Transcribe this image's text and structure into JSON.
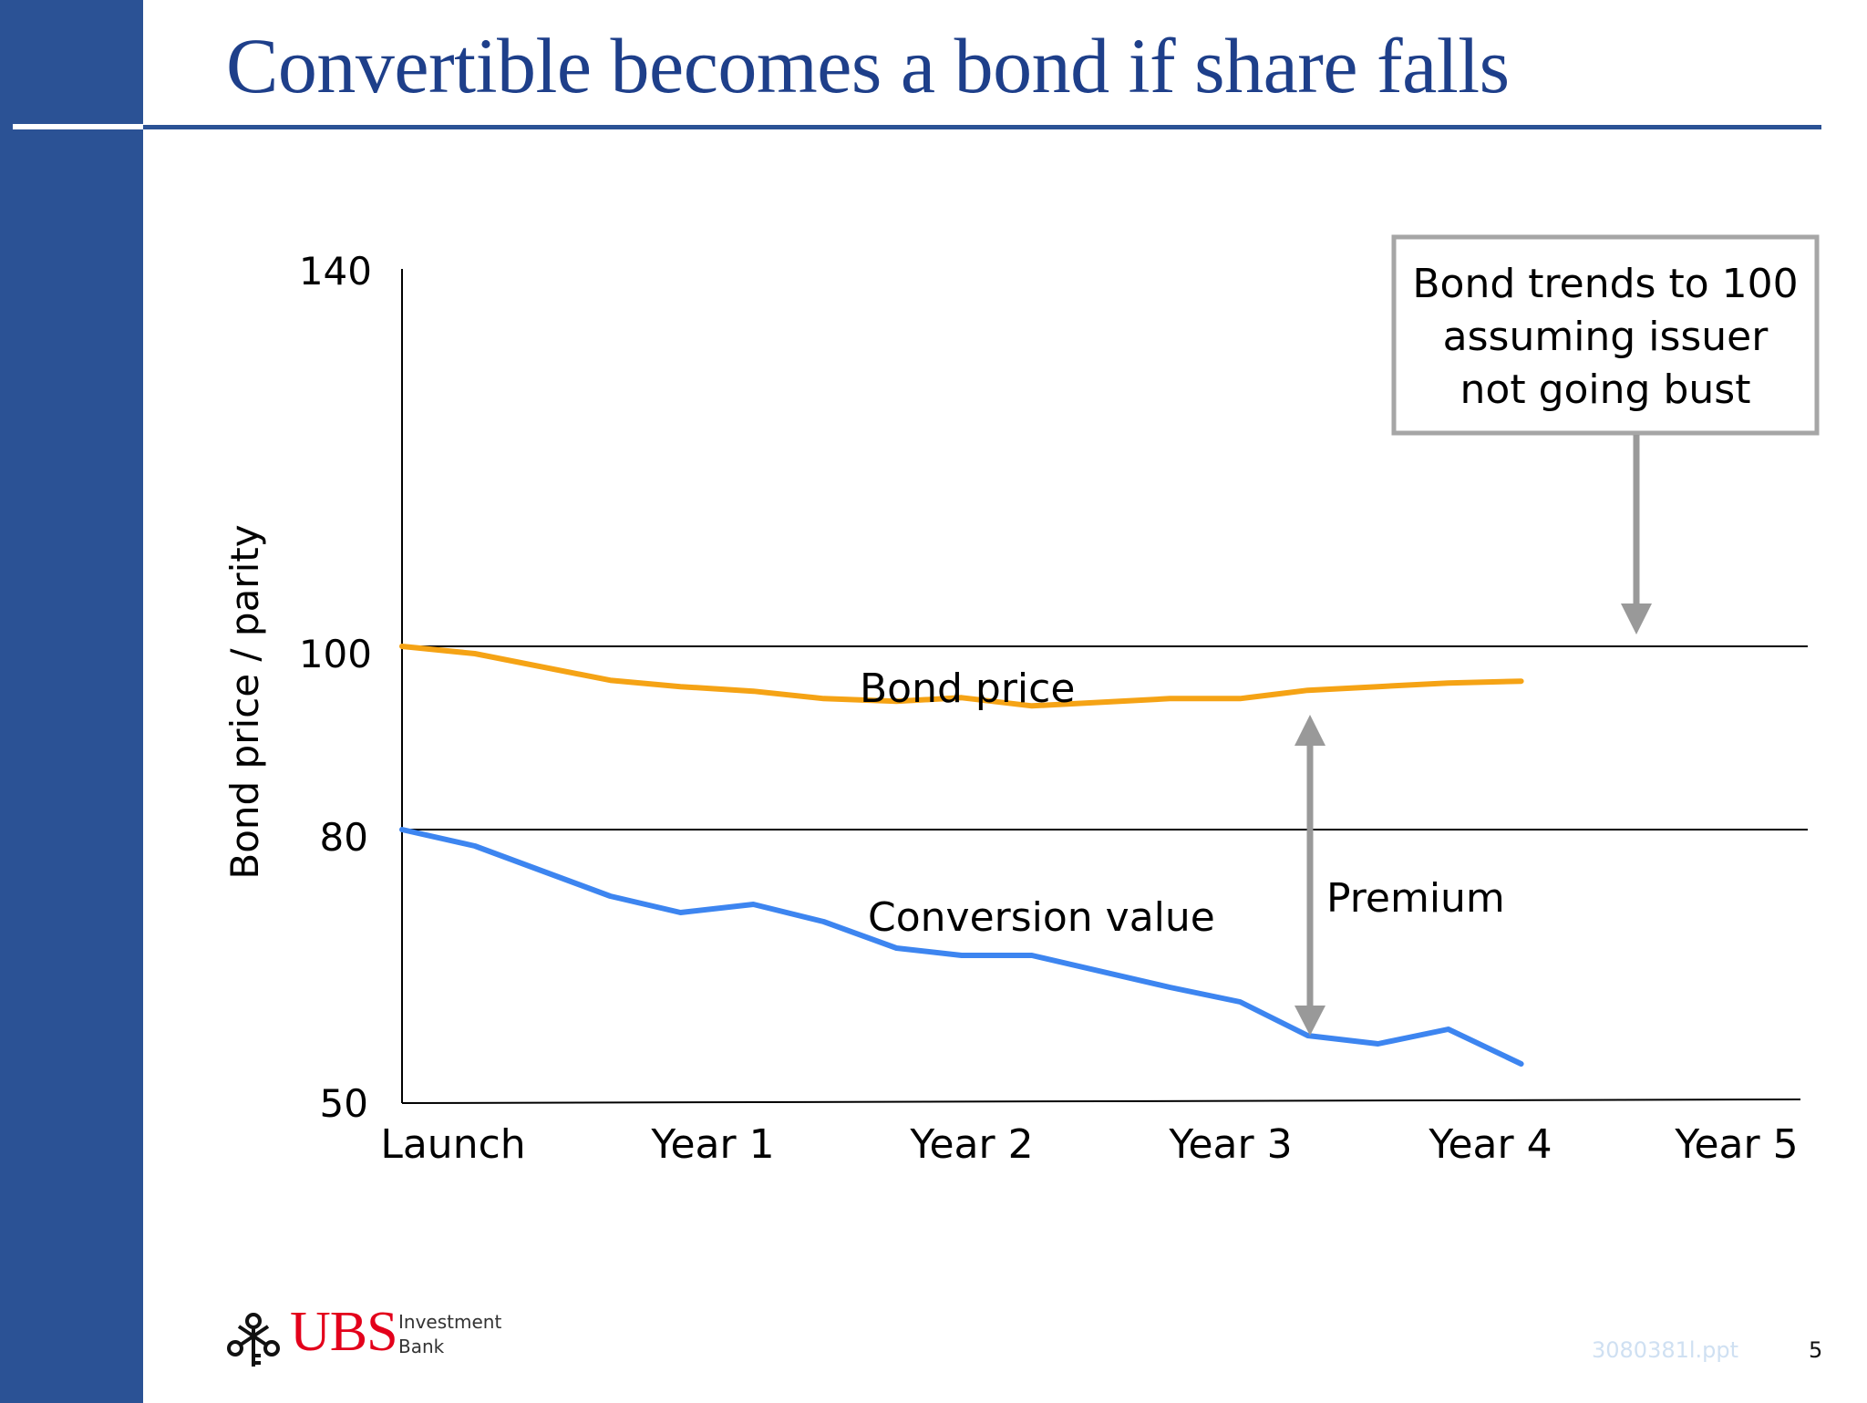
{
  "slide": {
    "title": "Convertible becomes a bond if share falls",
    "page_number": "5",
    "file_name": "3080381l.ppt",
    "colors": {
      "band": "#2b5295",
      "title": "#1e3f8a"
    }
  },
  "logo": {
    "brand": "UBS",
    "sub_line_1": "Investment",
    "sub_line_2": "Bank",
    "icon": "three-keys-icon",
    "brand_color": "#e3001b"
  },
  "chart_data": {
    "type": "line",
    "title": "",
    "xlabel": "",
    "ylabel": "Bond price / parity",
    "x_ticks": [
      "Launch",
      "Year 1",
      "Year 2",
      "Year 3",
      "Year 4",
      "Year 5"
    ],
    "x_range": [
      0,
      5
    ],
    "y_ticks": [
      140,
      100,
      80,
      50
    ],
    "y_range": [
      50,
      140
    ],
    "y_scale": "piecewise (140/100/80/50 ticks unevenly spaced)",
    "reference_lines": [
      100,
      80
    ],
    "series": [
      {
        "name": "Bond price",
        "color": "#f5a315",
        "x": [
          0,
          0.28,
          0.8,
          1.07,
          1.35,
          1.62,
          1.9,
          2.15,
          2.42,
          2.95,
          3.22,
          3.48,
          3.75,
          4.02,
          4.3
        ],
        "y": [
          100,
          99.2,
          96.3,
          95.6,
          95.1,
          94.3,
          94.0,
          94.4,
          93.5,
          94.3,
          94.3,
          95.2,
          95.6,
          96.0,
          96.2
        ]
      },
      {
        "name": "Conversion value",
        "color": "#3d85f0",
        "x": [
          0,
          0.28,
          0.8,
          1.07,
          1.35,
          1.62,
          1.9,
          2.15,
          2.42,
          2.95,
          3.22,
          3.48,
          3.75,
          4.02,
          4.3
        ],
        "y": [
          80,
          78.2,
          72.7,
          70.9,
          71.8,
          69.9,
          67.0,
          66.2,
          66.2,
          62.7,
          61.1,
          57.4,
          56.5,
          58.1,
          54.3
        ]
      }
    ],
    "annotations": {
      "callout": [
        "Bond trends to 100",
        "assuming issuer",
        "not going bust"
      ],
      "premium_label": "Premium",
      "premium_x": 3.48,
      "premium_from": 95.2,
      "premium_to": 57.4
    },
    "colors": {
      "axis": "#000000",
      "annotation": "#999999",
      "callout_border": "#a6a6a6"
    },
    "grid": false,
    "legend": "none (series labelled inline)"
  }
}
